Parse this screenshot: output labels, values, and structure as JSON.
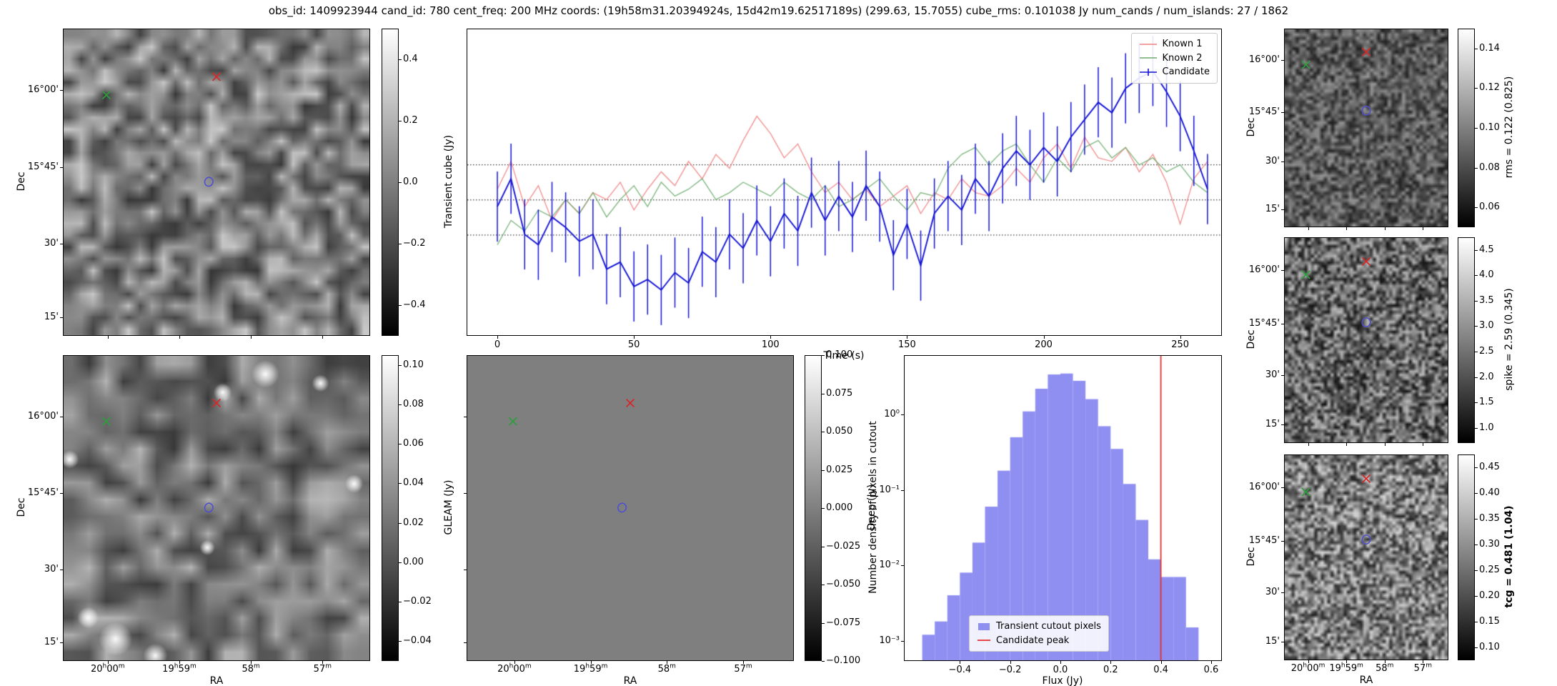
{
  "title": "obs_id: 1409923944 cand_id: 780 cent_freq: 200 MHz coords: (19h58m31.20394924s, 15d42m19.62517189s) (299.63, 15.7055) cube_rms: 0.101038 Jy num_cands / num_islands: 27 / 1862",
  "axis": {
    "ra_label": "RA",
    "dec_label": "Dec",
    "ra_ticks": [
      "20h00m",
      "19h59m",
      "58m",
      "57m"
    ],
    "dec_ticks": [
      "16°00'",
      "15°45'",
      "30'",
      "15'"
    ]
  },
  "sky_markers": [
    {
      "name": "known-1",
      "shape": "x",
      "color": "#d62728"
    },
    {
      "name": "known-2",
      "shape": "x",
      "color": "#2e9e3e"
    },
    {
      "name": "candidate",
      "shape": "contour",
      "color": "#4d4dd3"
    }
  ],
  "cutouts": {
    "transient": {
      "colorbar_label": "Transient cube (Jy)",
      "cbar_ticks": [
        "0.4",
        "0.2",
        "0.0",
        "−0.2",
        "−0.4"
      ],
      "tick_values": [
        0.4,
        0.2,
        0.0,
        -0.2,
        -0.4
      ],
      "vmin": -0.5,
      "vmax": 0.5
    },
    "gleam": {
      "colorbar_label": "GLEAM (Jy)",
      "cbar_ticks": [
        "0.10",
        "0.08",
        "0.06",
        "0.04",
        "0.02",
        "0.00",
        "−0.02",
        "−0.04"
      ],
      "tick_values": [
        0.1,
        0.08,
        0.06,
        0.04,
        0.02,
        0.0,
        -0.02,
        -0.04
      ],
      "vmin": -0.05,
      "vmax": 0.105
    },
    "deep": {
      "colorbar_label": "Deep (Jy)",
      "cbar_ticks": [
        "0.100",
        "0.075",
        "0.050",
        "0.025",
        "0.000",
        "−0.025",
        "−0.050",
        "−0.075",
        "−0.100"
      ],
      "tick_values": [
        0.1,
        0.075,
        0.05,
        0.025,
        0.0,
        -0.025,
        -0.05,
        -0.075,
        -0.1
      ],
      "vmin": -0.1,
      "vmax": 0.1
    },
    "rms": {
      "colorbar_label": "rms = 0.122 (0.825)",
      "cbar_ticks": [
        "0.14",
        "0.12",
        "0.10",
        "0.08",
        "0.06"
      ],
      "tick_values": [
        0.14,
        0.12,
        0.1,
        0.08,
        0.06
      ],
      "vmin": 0.05,
      "vmax": 0.15
    },
    "spike": {
      "colorbar_label": "spike = 2.59 (0.345)",
      "cbar_ticks": [
        "4.5",
        "4.0",
        "3.5",
        "3.0",
        "2.5",
        "2.0",
        "1.5",
        "1.0"
      ],
      "tick_values": [
        4.5,
        4.0,
        3.5,
        3.0,
        2.5,
        2.0,
        1.5,
        1.0
      ],
      "vmin": 0.7,
      "vmax": 4.75
    },
    "tcg": {
      "colorbar_label": "tcg = 0.481 (1.04)",
      "bold": true,
      "cbar_ticks": [
        "0.45",
        "0.40",
        "0.35",
        "0.30",
        "0.25",
        "0.20",
        "0.15",
        "0.10"
      ],
      "tick_values": [
        0.45,
        0.4,
        0.35,
        0.3,
        0.25,
        0.2,
        0.15,
        0.1
      ],
      "vmin": 0.075,
      "vmax": 0.475
    }
  },
  "chart_data": [
    {
      "type": "line",
      "title": "",
      "xlabel": "Time (s)",
      "ylabel": "Transient cube (Jy)",
      "xlim": [
        -11,
        265
      ],
      "ylim": [
        -0.39,
        0.49
      ],
      "xticks": [
        0,
        50,
        100,
        150,
        200,
        250
      ],
      "hlines": [
        0.101038,
        0.0,
        -0.101038
      ],
      "legend_position": "upper right",
      "x": [
        0,
        5,
        10,
        15,
        20,
        25,
        30,
        35,
        40,
        45,
        50,
        55,
        60,
        65,
        70,
        75,
        80,
        85,
        90,
        95,
        100,
        105,
        110,
        115,
        120,
        125,
        130,
        135,
        140,
        145,
        150,
        155,
        160,
        165,
        170,
        175,
        180,
        185,
        190,
        195,
        200,
        205,
        210,
        215,
        220,
        225,
        230,
        235,
        240,
        245,
        250,
        255,
        260
      ],
      "series": [
        {
          "name": "Known 1",
          "color": "#f08080",
          "values": [
            0.03,
            0.11,
            -0.02,
            0.04,
            -0.06,
            0.0,
            -0.04,
            0.02,
            0.0,
            0.05,
            -0.03,
            0.03,
            0.08,
            0.04,
            0.11,
            0.06,
            0.13,
            0.09,
            0.17,
            0.24,
            0.19,
            0.12,
            0.16,
            0.08,
            0.02,
            0.05,
            0.0,
            0.03,
            -0.02,
            0.01,
            0.04,
            -0.04,
            0.02,
            0.0,
            0.06,
            0.02,
            0.01,
            0.04,
            0.09,
            0.05,
            0.12,
            0.16,
            0.09,
            0.18,
            0.12,
            0.11,
            0.15,
            0.08,
            0.13,
            0.05,
            -0.07,
            0.06,
            0.11
          ]
        },
        {
          "name": "Known 2",
          "color": "#6cab6c",
          "values": [
            -0.13,
            -0.06,
            -0.09,
            -0.03,
            -0.05,
            0.0,
            -0.04,
            0.02,
            -0.05,
            0.0,
            0.04,
            -0.02,
            0.05,
            0.01,
            0.03,
            0.06,
            0.0,
            0.02,
            0.05,
            0.03,
            0.01,
            0.05,
            0.02,
            0.0,
            0.04,
            -0.02,
            0.0,
            0.03,
            0.06,
            0.01,
            -0.03,
            0.02,
            0.01,
            0.09,
            0.13,
            0.15,
            0.1,
            0.14,
            0.16,
            0.1,
            0.05,
            0.12,
            0.08,
            0.15,
            0.17,
            0.12,
            0.15,
            0.1,
            0.12,
            0.08,
            0.1,
            0.05,
            0.02
          ]
        },
        {
          "name": "Candidate",
          "color": "#1414d4",
          "yerr": 0.101,
          "values": [
            -0.02,
            0.06,
            -0.1,
            -0.13,
            -0.05,
            -0.08,
            -0.12,
            -0.1,
            -0.2,
            -0.18,
            -0.25,
            -0.23,
            -0.26,
            -0.21,
            -0.24,
            -0.15,
            -0.18,
            -0.1,
            -0.14,
            -0.06,
            -0.12,
            -0.04,
            -0.09,
            0.02,
            -0.06,
            0.01,
            -0.05,
            0.04,
            -0.02,
            -0.16,
            -0.07,
            -0.19,
            -0.04,
            0.01,
            -0.03,
            0.06,
            0.01,
            0.09,
            0.14,
            0.1,
            0.15,
            0.11,
            0.18,
            0.23,
            0.28,
            0.25,
            0.32,
            0.35,
            0.37,
            0.31,
            0.24,
            0.14,
            0.03
          ]
        }
      ]
    },
    {
      "type": "bar",
      "title": "",
      "xlabel": "Flux (Jy)",
      "ylabel": "Number density of pixels in cutout",
      "yscale": "log",
      "xlim": [
        -0.62,
        0.64
      ],
      "ylim_log": [
        0.00055,
        6
      ],
      "xticks": [
        -0.4,
        -0.2,
        0.0,
        0.2,
        0.4,
        0.6
      ],
      "xtick_labels": [
        "−0.4",
        "−0.2",
        "0.0",
        "0.2",
        "0.4",
        "0.6"
      ],
      "ytick_values": [
        1,
        0.1,
        0.01,
        0.001
      ],
      "ytick_labels": [
        "10⁰",
        "10⁻¹",
        "10⁻²",
        "10⁻³"
      ],
      "bar_color": "#8f8ff2",
      "bin_edges": [
        -0.55,
        -0.5,
        -0.45,
        -0.4,
        -0.35,
        -0.3,
        -0.25,
        -0.2,
        -0.15,
        -0.1,
        -0.05,
        0.0,
        0.05,
        0.1,
        0.15,
        0.2,
        0.25,
        0.3,
        0.35,
        0.4,
        0.45,
        0.5,
        0.55
      ],
      "densities": [
        0.0012,
        0.0018,
        0.004,
        0.008,
        0.02,
        0.06,
        0.18,
        0.5,
        1.1,
        2.2,
        3.4,
        3.5,
        2.8,
        1.6,
        0.7,
        0.35,
        0.12,
        0.04,
        0.012,
        0.007,
        0.007,
        0.0015
      ],
      "vline": {
        "x": 0.4,
        "color": "#e03131",
        "label": "Candidate peak"
      },
      "legend": [
        "Transient cutout pixels",
        "Candidate peak"
      ],
      "legend_position": "lower center"
    }
  ]
}
